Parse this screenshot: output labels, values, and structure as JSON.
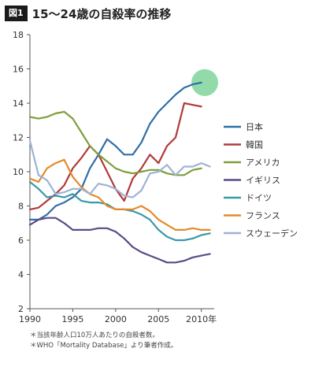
{
  "figure_label": "図1",
  "chart_data": {
    "type": "line",
    "title": "15～24歳の自殺率の推移",
    "x": [
      1990,
      1991,
      1992,
      1993,
      1994,
      1995,
      1996,
      1997,
      1998,
      1999,
      2000,
      2001,
      2002,
      2003,
      2004,
      2005,
      2006,
      2007,
      2008,
      2009,
      2010,
      2011
    ],
    "xticks": [
      "1990",
      "1995",
      "2000",
      "2005",
      "2010年"
    ],
    "xtick_values": [
      1990,
      1995,
      2000,
      2005,
      2010
    ],
    "xlim": [
      1990,
      2011.5
    ],
    "ylim": [
      2,
      18
    ],
    "yticks": [
      2,
      4,
      6,
      8,
      10,
      12,
      14,
      16,
      18
    ],
    "grid": false,
    "legend_position": "right",
    "highlight": {
      "series": "日本",
      "x": 2010.4,
      "y": 15.2,
      "color": "#7fd49a"
    },
    "series": [
      {
        "name": "日本",
        "color": "#2f6ea5",
        "values": [
          7.2,
          7.2,
          7.5,
          8.0,
          8.2,
          8.5,
          9.0,
          10.2,
          11.0,
          11.9,
          11.5,
          11.0,
          11.0,
          11.7,
          12.8,
          13.5,
          14.0,
          14.5,
          14.9,
          15.1,
          15.2,
          null
        ]
      },
      {
        "name": "韓国",
        "color": "#b03a3a",
        "values": [
          7.8,
          7.9,
          8.3,
          8.7,
          9.2,
          10.2,
          10.8,
          11.5,
          11.0,
          10.0,
          9.0,
          8.3,
          9.6,
          10.2,
          11.0,
          10.5,
          11.5,
          12.0,
          14.0,
          13.9,
          13.8,
          null
        ]
      },
      {
        "name": "アメリカ",
        "color": "#7e9e3a",
        "values": [
          13.2,
          13.1,
          13.2,
          13.4,
          13.5,
          13.1,
          12.3,
          11.5,
          11.0,
          10.6,
          10.2,
          10.0,
          9.9,
          10.0,
          10.1,
          10.1,
          9.9,
          9.8,
          9.8,
          10.1,
          10.2,
          null
        ]
      },
      {
        "name": "イギリス",
        "color": "#5b4a86",
        "values": [
          6.9,
          7.2,
          7.3,
          7.3,
          7.0,
          6.6,
          6.6,
          6.6,
          6.7,
          6.7,
          6.5,
          6.1,
          5.6,
          5.3,
          5.1,
          4.9,
          4.7,
          4.7,
          4.8,
          5.0,
          5.1,
          5.2
        ]
      },
      {
        "name": "ドイツ",
        "color": "#3a98a8",
        "values": [
          9.4,
          9.0,
          8.5,
          8.6,
          8.5,
          8.7,
          8.3,
          8.2,
          8.2,
          8.1,
          7.8,
          7.8,
          7.7,
          7.5,
          7.2,
          6.6,
          6.2,
          6.0,
          6.0,
          6.1,
          6.3,
          6.4
        ]
      },
      {
        "name": "フランス",
        "color": "#e48a2a",
        "values": [
          9.6,
          9.4,
          10.2,
          10.5,
          10.7,
          9.7,
          9.1,
          8.7,
          8.5,
          8.0,
          7.8,
          7.8,
          7.8,
          8.0,
          7.7,
          7.2,
          6.9,
          6.6,
          6.6,
          6.7,
          6.6,
          6.6
        ]
      },
      {
        "name": "スウェーデン",
        "color": "#9db3d5",
        "values": [
          11.8,
          9.8,
          9.5,
          8.7,
          8.8,
          9.0,
          9.0,
          8.7,
          9.3,
          9.2,
          9.0,
          8.6,
          8.5,
          8.9,
          9.9,
          10.0,
          10.4,
          9.8,
          10.3,
          10.3,
          10.5,
          10.3
        ]
      }
    ]
  },
  "footnotes": [
    "＊当該年齢人口10万人あたりの自殺者数。",
    "＊WHO「Mortality Database」より筆者作成。"
  ]
}
